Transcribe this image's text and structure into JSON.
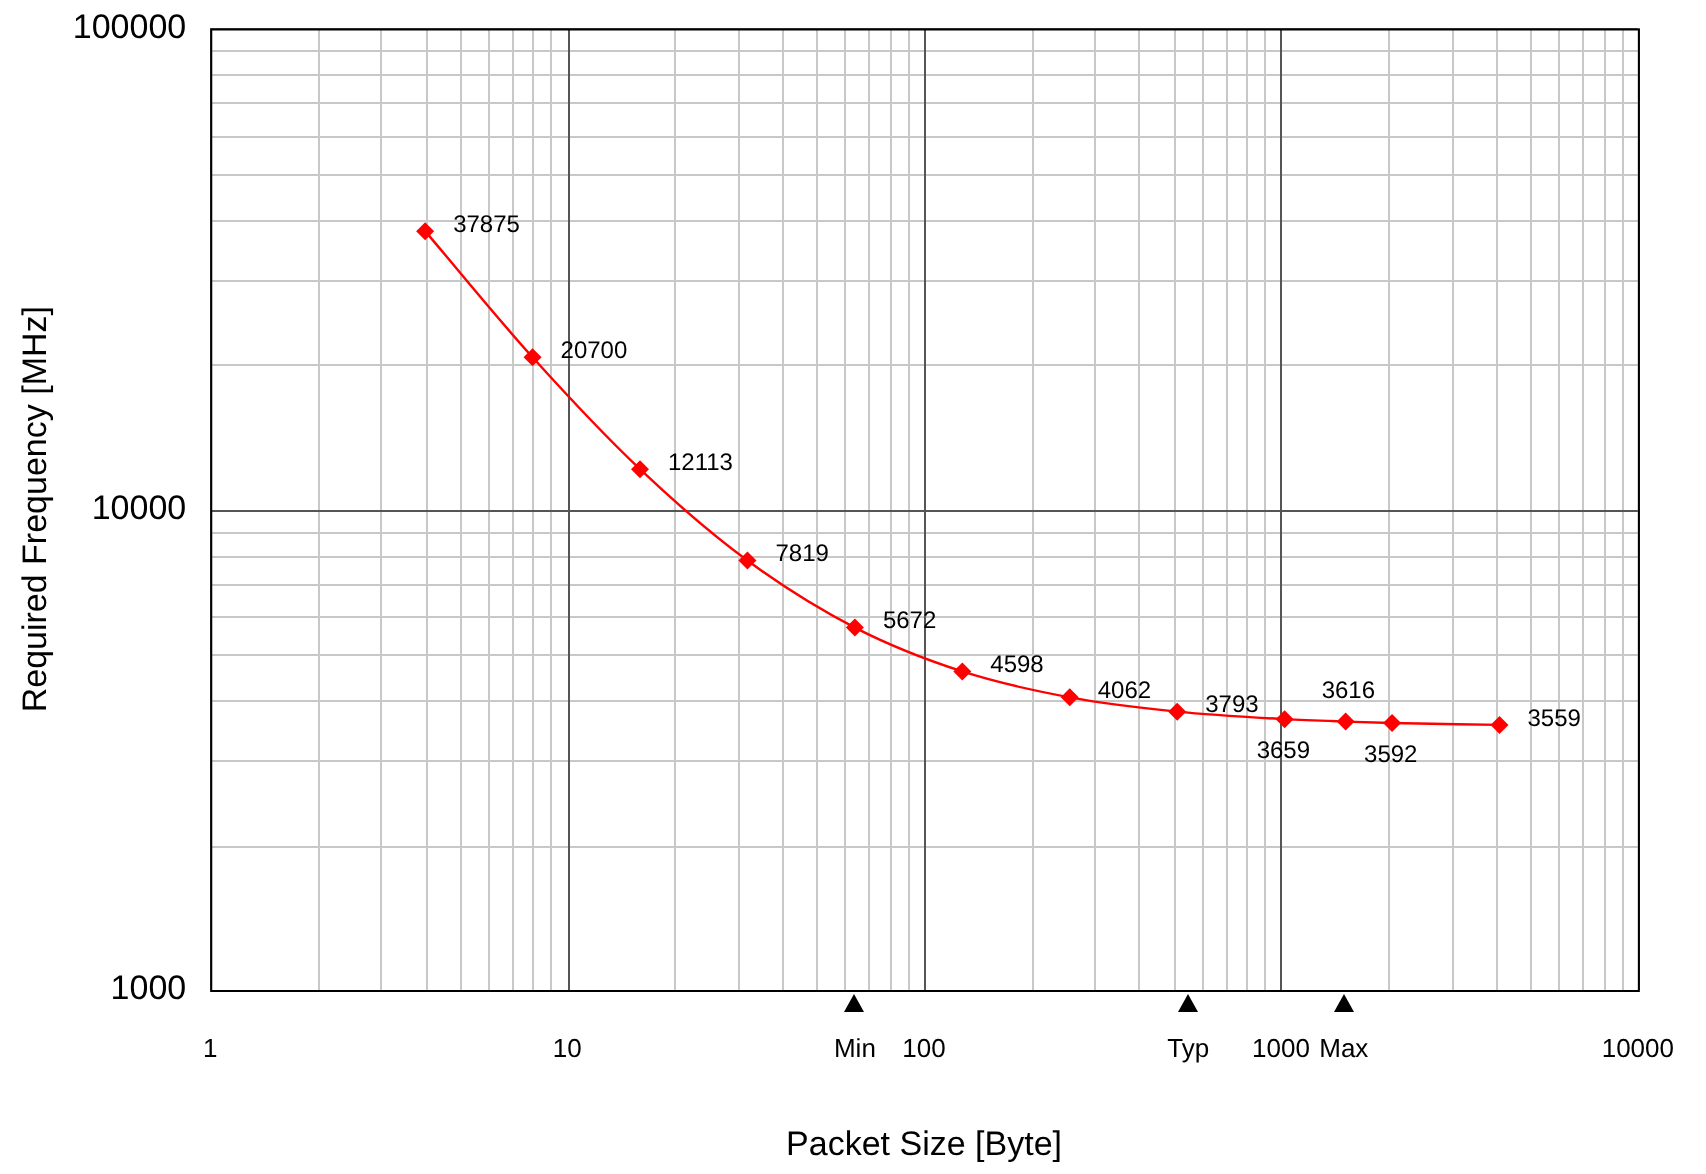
{
  "chart_data": {
    "type": "line",
    "xlabel": "Packet Size [Byte]",
    "ylabel": "Required Frequency [MHz]",
    "x": [
      4,
      8,
      16,
      32,
      64,
      128,
      256,
      512,
      1024,
      1518,
      2048,
      4096
    ],
    "series": [
      {
        "color": "#ff0000",
        "values": [
          37875,
          20700,
          12113,
          7819,
          5672,
          4598,
          4062,
          3793,
          3659,
          3616,
          3592,
          3559
        ]
      }
    ],
    "log": "xy",
    "xlim": [
      1,
      10000
    ],
    "ylim": [
      1000,
      100000
    ],
    "xticks": [
      1,
      10,
      {
        "value": 64,
        "label": "Min"
      },
      100,
      {
        "value": 550,
        "label": "Typ"
      },
      1000,
      {
        "value": 1500,
        "label": "Max"
      },
      10000
    ],
    "yticks": [
      1000,
      10000,
      100000
    ],
    "grid": true,
    "legend": false,
    "marker": "diamond",
    "line_style": "solid",
    "data_labels": true
  }
}
